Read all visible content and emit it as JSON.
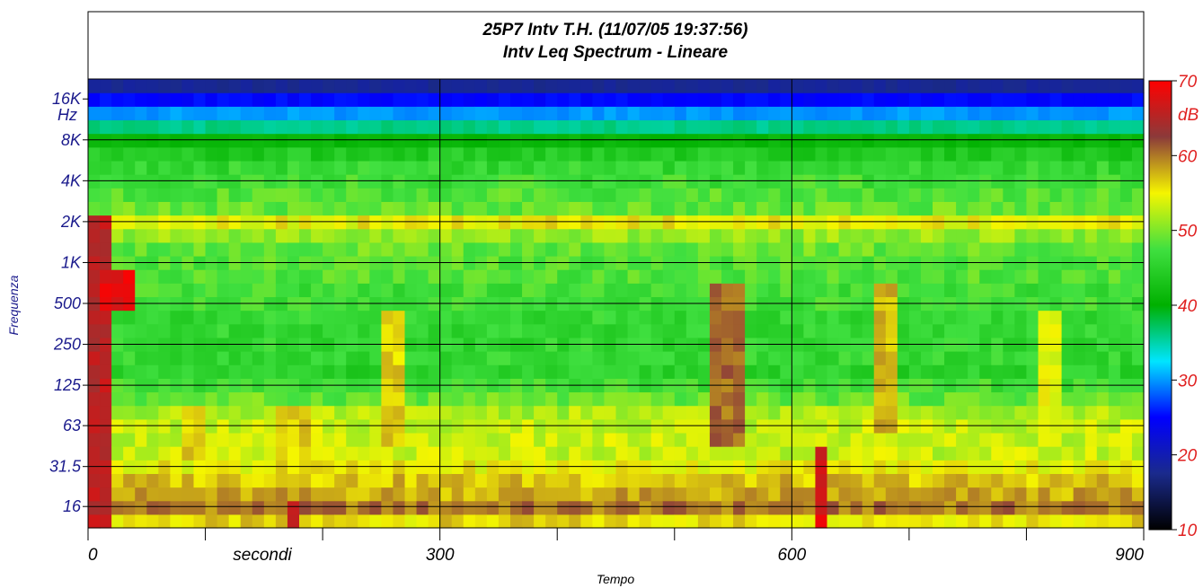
{
  "chart_data": {
    "type": "heatmap",
    "title": "25P7 Intv T.H. (11/07/05 19:37:56)",
    "subtitle": "Intv Leq Spectrum - Lineare",
    "xlabel": "Tempo",
    "x_unit_label": "secondi",
    "ylabel": "Frequenza",
    "y_unit_label": "Hz",
    "xlim": [
      0,
      900
    ],
    "x_ticks": [
      "0",
      "300",
      "600",
      "900"
    ],
    "y_scale": "log (1/3 octave bands)",
    "y_ticks": [
      "16",
      "31.5",
      "63",
      "125",
      "250",
      "500",
      "1K",
      "2K",
      "4K",
      "8K",
      "16K"
    ],
    "colorbar": {
      "unit": "dB",
      "range": [
        10,
        70
      ],
      "ticks": [
        "10",
        "20",
        "30",
        "40",
        "50",
        "60",
        "70"
      ],
      "colors": [
        "#000000",
        "#1a2a8c",
        "#0000ff",
        "#00e5ff",
        "#00b000",
        "#40e040",
        "#f5f500",
        "#8b3a3a",
        "#ff0000"
      ]
    },
    "grid": true,
    "bands_hz": [
      12.5,
      16,
      20,
      25,
      31.5,
      40,
      50,
      63,
      80,
      100,
      125,
      160,
      200,
      250,
      315,
      400,
      500,
      630,
      800,
      1000,
      1250,
      1600,
      2000,
      2500,
      3150,
      4000,
      5000,
      6300,
      8000,
      10000,
      12500,
      16000,
      20000
    ],
    "time_step_s": 10,
    "band_profile_db": [
      56,
      60,
      58,
      57,
      55,
      53,
      53,
      53,
      52,
      49,
      47,
      45,
      46,
      46,
      46,
      46,
      47,
      47,
      48,
      48,
      49,
      51,
      55,
      49,
      48,
      47,
      46,
      44,
      41,
      36,
      30,
      25,
      18
    ],
    "events": [
      {
        "t_start": 0,
        "t_end": 20,
        "f_low": 12.5,
        "f_high": 2000,
        "level_db": 67
      },
      {
        "t_start": 10,
        "t_end": 40,
        "f_low": 500,
        "f_high": 800,
        "level_db": 70
      },
      {
        "t_start": 80,
        "t_end": 100,
        "f_low": 40,
        "f_high": 80,
        "level_db": 58
      },
      {
        "t_start": 170,
        "t_end": 180,
        "f_low": 12.5,
        "f_high": 16,
        "level_db": 68
      },
      {
        "t_start": 160,
        "t_end": 190,
        "f_low": 16,
        "f_high": 80,
        "level_db": 58
      },
      {
        "t_start": 250,
        "t_end": 270,
        "f_low": 50,
        "f_high": 400,
        "level_db": 58
      },
      {
        "t_start": 530,
        "t_end": 560,
        "f_low": 50,
        "f_high": 630,
        "level_db": 62
      },
      {
        "t_start": 620,
        "t_end": 630,
        "f_low": 12.5,
        "f_high": 40,
        "level_db": 69
      },
      {
        "t_start": 670,
        "t_end": 690,
        "f_low": 63,
        "f_high": 630,
        "level_db": 59
      },
      {
        "t_start": 810,
        "t_end": 830,
        "f_low": 50,
        "f_high": 400,
        "level_db": 56
      }
    ]
  }
}
